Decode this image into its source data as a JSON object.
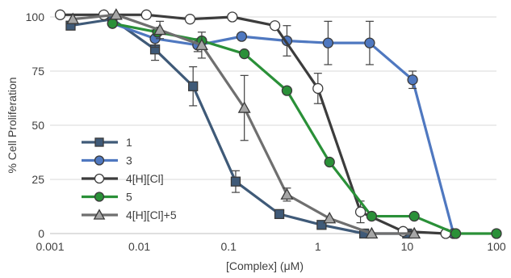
{
  "chart_data": {
    "type": "line",
    "xlabel": "[Complex] (μM)",
    "ylabel": "% Cell Proliferation",
    "x_scale": "log",
    "xlim": [
      0.001,
      100
    ],
    "ylim": [
      0,
      100
    ],
    "x_ticks": [
      0.001,
      0.01,
      0.1,
      1,
      10,
      100
    ],
    "x_tick_labels": [
      "0.001",
      "0.01",
      "0.1",
      "1",
      "10",
      "100"
    ],
    "y_ticks": [
      0,
      25,
      50,
      75,
      100
    ],
    "y_tick_labels": [
      "0",
      "25",
      "50",
      "75",
      "100"
    ],
    "grid": "horizontal",
    "legend_position": "bottom-left",
    "series": [
      {
        "name": "1",
        "color": "#3f5a78",
        "marker": "square",
        "marker_fill": "#3f5a78",
        "points": [
          {
            "x": 0.0017,
            "y": 96,
            "err": 0
          },
          {
            "x": 0.005,
            "y": 99,
            "err": 0
          },
          {
            "x": 0.015,
            "y": 85,
            "err": 5
          },
          {
            "x": 0.04,
            "y": 68,
            "err": 9
          },
          {
            "x": 0.12,
            "y": 24,
            "err": 5
          },
          {
            "x": 0.37,
            "y": 9,
            "err": 0
          },
          {
            "x": 1.1,
            "y": 4,
            "err": 0
          },
          {
            "x": 3.3,
            "y": 0,
            "err": 0
          },
          {
            "x": 10,
            "y": 0,
            "err": 0
          }
        ]
      },
      {
        "name": "3",
        "color": "#4f78c0",
        "marker": "circle",
        "marker_fill": "#4f78c0",
        "points": [
          {
            "x": 0.005,
            "y": 97,
            "err": 0
          },
          {
            "x": 0.015,
            "y": 90,
            "err": 4
          },
          {
            "x": 0.045,
            "y": 87,
            "err": 3
          },
          {
            "x": 0.14,
            "y": 91,
            "err": 0
          },
          {
            "x": 0.45,
            "y": 89,
            "err": 7
          },
          {
            "x": 1.3,
            "y": 88,
            "err": 10
          },
          {
            "x": 3.8,
            "y": 88,
            "err": 10
          },
          {
            "x": 11.5,
            "y": 71,
            "err": 4
          },
          {
            "x": 33,
            "y": 0,
            "err": 0
          }
        ]
      },
      {
        "name": "4[H][Cl]",
        "color": "#3c3c3c",
        "marker": "circle",
        "marker_fill": "#ffffff",
        "points": [
          {
            "x": 0.0013,
            "y": 101,
            "err": 0
          },
          {
            "x": 0.004,
            "y": 101,
            "err": 0
          },
          {
            "x": 0.012,
            "y": 101,
            "err": 0
          },
          {
            "x": 0.037,
            "y": 99,
            "err": 0
          },
          {
            "x": 0.11,
            "y": 100,
            "err": 0
          },
          {
            "x": 0.33,
            "y": 96,
            "err": 0
          },
          {
            "x": 1.0,
            "y": 67,
            "err": 7
          },
          {
            "x": 3.0,
            "y": 10,
            "err": 5
          },
          {
            "x": 9.0,
            "y": 1,
            "err": 0
          },
          {
            "x": 27,
            "y": 0,
            "err": 0
          }
        ]
      },
      {
        "name": "5",
        "color": "#2a9038",
        "marker": "circle",
        "marker_fill": "#2a9038",
        "points": [
          {
            "x": 0.005,
            "y": 97,
            "err": 0
          },
          {
            "x": 0.016,
            "y": 93,
            "err": 0
          },
          {
            "x": 0.05,
            "y": 89,
            "err": 0
          },
          {
            "x": 0.15,
            "y": 83,
            "err": 0
          },
          {
            "x": 0.45,
            "y": 66,
            "err": 0
          },
          {
            "x": 1.35,
            "y": 33,
            "err": 0
          },
          {
            "x": 4.0,
            "y": 8,
            "err": 0
          },
          {
            "x": 12,
            "y": 8,
            "err": 0
          },
          {
            "x": 35,
            "y": 0,
            "err": 0
          },
          {
            "x": 100,
            "y": 0,
            "err": 0
          }
        ]
      },
      {
        "name": "4[H][Cl]+5",
        "color": "#6f6f6f",
        "marker": "triangle",
        "marker_fill": "#a6a6a6",
        "points": [
          {
            "x": 0.0018,
            "y": 99,
            "err": 0
          },
          {
            "x": 0.0055,
            "y": 101,
            "err": 0
          },
          {
            "x": 0.017,
            "y": 94,
            "err": 4
          },
          {
            "x": 0.05,
            "y": 87,
            "err": 6
          },
          {
            "x": 0.15,
            "y": 58,
            "err": 15
          },
          {
            "x": 0.45,
            "y": 18,
            "err": 3
          },
          {
            "x": 1.35,
            "y": 7,
            "err": 0
          },
          {
            "x": 4.0,
            "y": 0,
            "err": 0
          },
          {
            "x": 12,
            "y": 0,
            "err": 0
          }
        ]
      }
    ]
  }
}
